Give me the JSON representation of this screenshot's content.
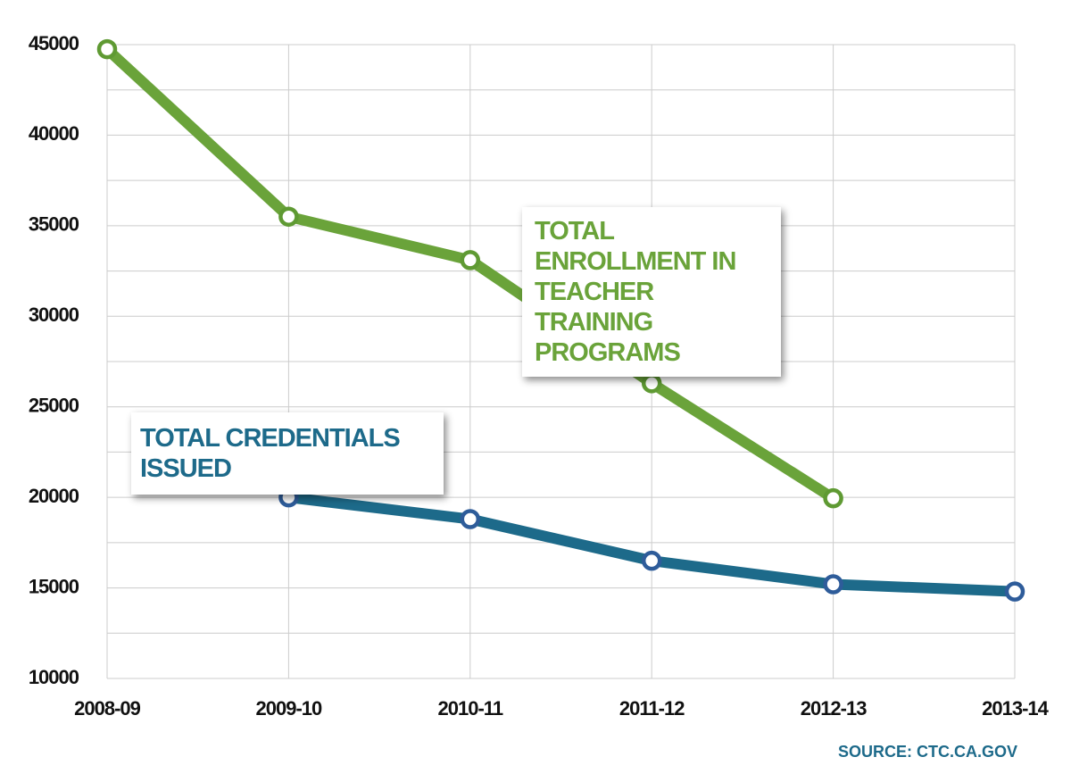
{
  "chart_data": {
    "type": "line",
    "categories": [
      "2008-09",
      "2009-10",
      "2010-11",
      "2011-12",
      "2012-13",
      "2013-14"
    ],
    "series": [
      {
        "name": "TOTAL ENROLLMENT IN TEACHER TRAINING PROGRAMS",
        "color": "#6aa33a",
        "values": [
          44750,
          35500,
          33100,
          26300,
          19950,
          null
        ]
      },
      {
        "name": "TOTAL CREDENTIALS ISSUED",
        "color": "#1d6a8a",
        "values": [
          null,
          20000,
          18800,
          16500,
          15200,
          14800
        ]
      }
    ],
    "ylim": [
      10000,
      45000
    ],
    "yticks": [
      10000,
      15000,
      20000,
      25000,
      30000,
      35000,
      40000,
      45000
    ],
    "grid": true,
    "source": "SOURCE: CTC.CA.GOV"
  }
}
